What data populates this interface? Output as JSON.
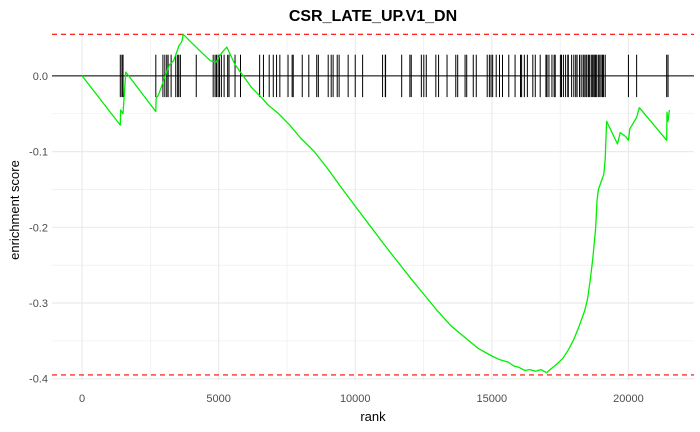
{
  "chart_data": {
    "type": "line",
    "title": "CSR_LATE_UP.V1_DN",
    "xlabel": "rank",
    "ylabel": "enrichment score",
    "xlim": [
      -1100,
      22400
    ],
    "ylim": [
      -0.403,
      0.058
    ],
    "xticks": [
      0,
      5000,
      10000,
      15000,
      20000
    ],
    "xtick_labels": [
      "0",
      "5000",
      "10000",
      "15000",
      "20000"
    ],
    "yticks": [
      0.0,
      -0.1,
      -0.2,
      -0.3,
      -0.4
    ],
    "ytick_labels": [
      "0.0",
      "-0.1",
      "-0.2",
      "-0.3",
      "-0.4"
    ],
    "grid": true,
    "zero_line": 0.0,
    "threshold_lines": [
      {
        "y": 0.055,
        "color": "#ff0000",
        "style": "dashed"
      },
      {
        "y": -0.395,
        "color": "#ff0000",
        "style": "dashed"
      }
    ],
    "colors": {
      "running_score": "#00ee00",
      "threshold": "#ff0000",
      "hits": "#000000",
      "grid": "#ebebeb"
    },
    "running_score": {
      "x": [
        0,
        1400,
        1410,
        1500,
        1600,
        2700,
        2710,
        2800,
        3000,
        3200,
        3350,
        3500,
        3550,
        3650,
        3700,
        4400,
        4700,
        4900,
        5100,
        5300,
        5600,
        6200,
        6600,
        6800,
        7200,
        7600,
        8000,
        8500,
        9000,
        9500,
        10000,
        10500,
        11000,
        11500,
        12000,
        12500,
        13000,
        13500,
        14000,
        14500,
        15000,
        15300,
        15600,
        15800,
        16000,
        16200,
        16400,
        16600,
        16800,
        17000,
        17200,
        17400,
        17600,
        17800,
        18000,
        18200,
        18400,
        18500,
        18600,
        18700,
        18800,
        18850,
        18900,
        19000,
        19100,
        19150,
        19200,
        19600,
        19700,
        19900,
        20000,
        20050,
        20300,
        20350,
        20400,
        21400,
        21410,
        21450,
        21500
      ],
      "y": [
        0.0,
        -0.065,
        -0.045,
        -0.05,
        0.005,
        -0.047,
        -0.03,
        -0.025,
        -0.005,
        0.015,
        0.02,
        0.035,
        0.04,
        0.045,
        0.055,
        0.03,
        0.02,
        0.018,
        0.03,
        0.038,
        0.015,
        -0.015,
        -0.03,
        -0.038,
        -0.05,
        -0.065,
        -0.082,
        -0.1,
        -0.123,
        -0.148,
        -0.172,
        -0.196,
        -0.22,
        -0.243,
        -0.266,
        -0.288,
        -0.31,
        -0.33,
        -0.345,
        -0.36,
        -0.37,
        -0.375,
        -0.378,
        -0.383,
        -0.385,
        -0.389,
        -0.388,
        -0.39,
        -0.388,
        -0.392,
        -0.386,
        -0.38,
        -0.373,
        -0.362,
        -0.348,
        -0.33,
        -0.31,
        -0.295,
        -0.27,
        -0.24,
        -0.2,
        -0.165,
        -0.15,
        -0.14,
        -0.13,
        -0.11,
        -0.06,
        -0.09,
        -0.075,
        -0.08,
        -0.085,
        -0.07,
        -0.055,
        -0.048,
        -0.042,
        -0.085,
        -0.048,
        -0.06,
        -0.045
      ]
    },
    "hits": [
      1400,
      1460,
      1500,
      2700,
      2960,
      3030,
      3100,
      3150,
      3260,
      3430,
      3500,
      3540,
      3600,
      4180,
      4800,
      4870,
      4920,
      4980,
      5030,
      5100,
      5200,
      5330,
      5380,
      5600,
      5800,
      6500,
      6640,
      6850,
      7000,
      7120,
      7240,
      7540,
      7690,
      7730,
      8060,
      8300,
      8590,
      8650,
      9010,
      9120,
      9190,
      9340,
      9410,
      9740,
      10000,
      10270,
      11000,
      11100,
      11110,
      11700,
      12000,
      12050,
      12420,
      12510,
      12600,
      12950,
      13050,
      13360,
      13680,
      13750,
      14020,
      14080,
      14320,
      14430,
      14830,
      14910,
      14970,
      15030,
      15160,
      15280,
      15390,
      15620,
      15850,
      16050,
      16090,
      16190,
      16300,
      16500,
      16590,
      16770,
      16980,
      17020,
      17090,
      17200,
      17280,
      17320,
      17510,
      17550,
      17620,
      17700,
      17780,
      17800,
      17920,
      18000,
      18070,
      18120,
      18210,
      18270,
      18340,
      18380,
      18440,
      18480,
      18540,
      18580,
      18640,
      18680,
      18730,
      18770,
      18800,
      18840,
      18900,
      18950,
      19000,
      19050,
      19090,
      19150,
      20000,
      20300,
      21400,
      21450
    ]
  }
}
